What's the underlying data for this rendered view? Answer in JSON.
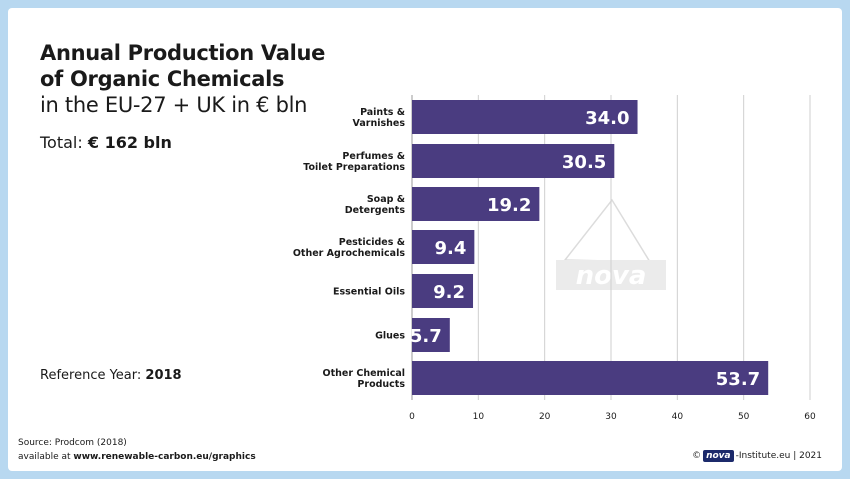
{
  "title": {
    "line1": "Annual Production Value",
    "line2": "of Organic Chemicals",
    "line3": "in the EU-27 + UK in € bln"
  },
  "total": {
    "label": "Total:",
    "value": "€ 162 bln"
  },
  "reference": {
    "label": "Reference Year:",
    "value": "2018"
  },
  "source": {
    "text": "Source: Prodcom (2018)",
    "available_label": "available at",
    "url": "www.renewable-carbon.eu/graphics"
  },
  "credit": {
    "symbol": "©",
    "logo": "nova",
    "text": "-Institute.eu | 2021"
  },
  "watermark": "nova",
  "colors": {
    "bar": "#4a3c80",
    "grid": "#cfcfcf",
    "frame": "#b8d8f0"
  },
  "chart_data": {
    "type": "bar",
    "orientation": "horizontal",
    "categories": [
      [
        "Paints &",
        "Varnishes"
      ],
      [
        "Perfumes &",
        "Toilet Preparations"
      ],
      [
        "Soap &",
        "Detergents"
      ],
      [
        "Pesticides &",
        "Other Agrochemicals"
      ],
      [
        "Essential Oils"
      ],
      [
        "Glues"
      ],
      [
        "Other Chemical",
        "Products"
      ]
    ],
    "values": [
      34.0,
      30.5,
      19.2,
      9.4,
      9.2,
      5.7,
      53.7
    ],
    "value_labels": [
      "34.0",
      "30.5",
      "19.2",
      "9.4",
      "9.2",
      "5.7",
      "53.7"
    ],
    "xlim": [
      0,
      60
    ],
    "xticks": [
      0,
      10,
      20,
      30,
      40,
      50,
      60
    ],
    "grid": true,
    "title": "Annual Production Value of Organic Chemicals in the EU-27 + UK in € bln",
    "xlabel": "",
    "ylabel": ""
  }
}
